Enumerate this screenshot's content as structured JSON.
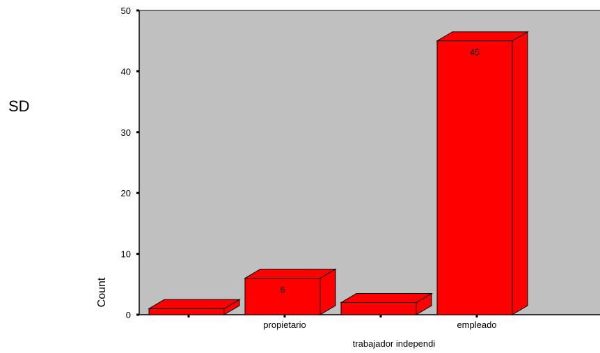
{
  "side_label": "SD",
  "chart_data": {
    "type": "bar",
    "title": "",
    "xlabel": "trabajador independi",
    "ylabel": "Count",
    "ylim": [
      0,
      50
    ],
    "yticks": [
      0,
      10,
      20,
      30,
      40,
      50
    ],
    "categories": [
      "",
      "propietario",
      "",
      "empleado"
    ],
    "values": [
      1,
      6,
      2,
      45
    ],
    "data_labels": [
      "",
      "6",
      "",
      "45"
    ],
    "three_d": true,
    "grid": false,
    "colors": {
      "bar": "#ff0000",
      "plot_background": "#c0c0c0",
      "outline": "#000000"
    }
  }
}
